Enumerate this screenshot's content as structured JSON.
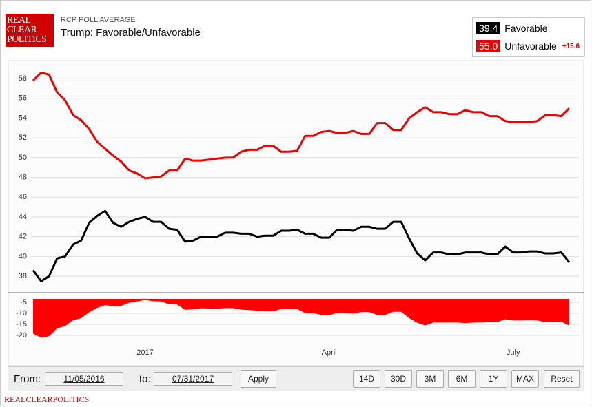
{
  "logo": [
    "REAL",
    "CLEAR",
    "POLITICS"
  ],
  "footer": "REALCLEARPOLITICS",
  "controls": {
    "from_label": "From:",
    "from": "11/05/2016",
    "to_label": "to:",
    "to": "07/31/2017",
    "apply": "Apply",
    "ranges": [
      "14D",
      "30D",
      "3M",
      "6M",
      "1Y",
      "MAX"
    ],
    "reset": "Reset"
  },
  "chart_data": [
    {
      "type": "line",
      "subtitle": "RCP POLL AVERAGE",
      "title": "Trump: Favorable/Unfavorable",
      "categories": [
        null,
        null,
        null,
        null,
        null,
        null,
        null,
        null,
        null,
        null,
        null,
        null,
        null,
        null,
        "2017",
        null,
        null,
        null,
        null,
        null,
        null,
        null,
        null,
        null,
        null,
        null,
        null,
        null,
        null,
        null,
        null,
        null,
        null,
        null,
        null,
        null,
        null,
        "April",
        null,
        null,
        null,
        null,
        null,
        null,
        null,
        null,
        null,
        null,
        null,
        null,
        null,
        null,
        null,
        null,
        null,
        null,
        null,
        null,
        null,
        null,
        "July",
        null,
        null,
        null,
        null,
        null,
        null,
        null
      ],
      "series": [
        {
          "name": "Favorable",
          "color": "#000000",
          "current_label": "39.4",
          "values": [
            38.6,
            37.5,
            38.0,
            39.8,
            40.0,
            41.2,
            41.6,
            43.4,
            44.1,
            44.6,
            43.4,
            43.0,
            43.5,
            43.8,
            44.0,
            43.5,
            43.5,
            42.8,
            42.7,
            41.5,
            41.6,
            42.0,
            42.0,
            42.0,
            42.4,
            42.4,
            42.3,
            42.3,
            42.0,
            42.1,
            42.1,
            42.6,
            42.6,
            42.7,
            42.3,
            42.3,
            41.9,
            41.9,
            42.7,
            42.7,
            42.6,
            43.0,
            43.0,
            42.8,
            42.8,
            43.5,
            43.5,
            41.8,
            40.3,
            39.6,
            40.4,
            40.4,
            40.2,
            40.2,
            40.4,
            40.4,
            40.4,
            40.2,
            40.2,
            41.0,
            40.4,
            40.4,
            40.5,
            40.5,
            40.3,
            40.3,
            40.4,
            39.4
          ]
        },
        {
          "name": "Unfavorable",
          "color": "#ee0000",
          "current_label": "55.0",
          "values": [
            57.8,
            58.6,
            58.4,
            56.6,
            55.8,
            54.3,
            53.8,
            52.9,
            51.6,
            50.9,
            50.2,
            49.6,
            48.7,
            48.4,
            47.9,
            48.0,
            48.1,
            48.7,
            48.7,
            49.9,
            49.7,
            49.7,
            49.8,
            49.9,
            50.0,
            50.0,
            50.6,
            50.8,
            50.8,
            51.2,
            51.2,
            50.6,
            50.6,
            50.7,
            52.2,
            52.2,
            52.6,
            52.7,
            52.5,
            52.5,
            52.7,
            52.4,
            52.4,
            53.5,
            53.5,
            52.8,
            52.8,
            54.0,
            54.6,
            55.1,
            54.6,
            54.6,
            54.4,
            54.4,
            54.8,
            54.6,
            54.6,
            54.2,
            54.2,
            53.7,
            53.6,
            53.6,
            53.6,
            53.7,
            54.3,
            54.3,
            54.2,
            55.0
          ]
        }
      ],
      "ylim": [
        36.4,
        59.4
      ],
      "yticks": [
        38,
        40,
        42,
        44,
        46,
        48,
        50,
        52,
        54,
        56,
        58
      ],
      "grid": true
    },
    {
      "type": "area",
      "color": "#ff0000",
      "spread_label": "+15.6",
      "values": [
        -19.2,
        -21.1,
        -20.4,
        -16.8,
        -15.8,
        -13.1,
        -12.2,
        -9.5,
        -7.5,
        -6.3,
        -6.8,
        -6.6,
        -5.2,
        -4.6,
        -3.9,
        -4.5,
        -4.6,
        -5.9,
        -6.0,
        -8.4,
        -8.1,
        -7.7,
        -7.8,
        -7.9,
        -7.6,
        -7.6,
        -8.3,
        -8.5,
        -8.8,
        -9.1,
        -9.1,
        -8.0,
        -8.0,
        -8.0,
        -9.9,
        -9.9,
        -10.7,
        -10.8,
        -9.8,
        -9.8,
        -10.1,
        -9.4,
        -9.4,
        -10.7,
        -10.7,
        -9.3,
        -9.3,
        -12.2,
        -14.3,
        -15.5,
        -14.2,
        -14.2,
        -14.2,
        -14.2,
        -14.4,
        -14.2,
        -14.2,
        -14.0,
        -14.0,
        -12.7,
        -13.2,
        -13.2,
        -13.1,
        -13.2,
        -14.0,
        -14.0,
        -13.8,
        -15.6
      ],
      "ylim": [
        -22.2,
        -2.8
      ],
      "yticks": [
        -5,
        -10,
        -15,
        -20
      ],
      "grid": true
    }
  ]
}
